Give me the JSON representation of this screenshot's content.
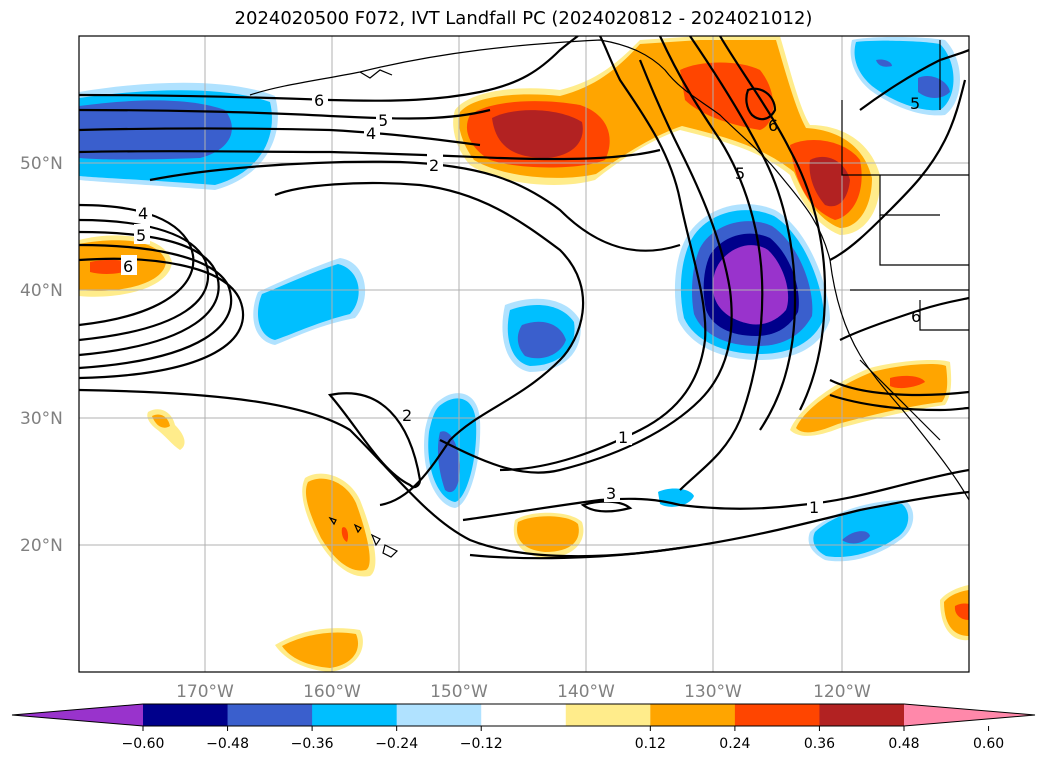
{
  "title": "2024020500 F072, IVT Landfall PC (2024020812 - 2024021012)",
  "latitude_labels": [
    "50°N",
    "40°N",
    "30°N",
    "20°N"
  ],
  "longitude_labels": [
    "170°W",
    "160°W",
    "150°W",
    "140°W",
    "130°W",
    "120°W"
  ],
  "colorbar": {
    "tick_labels": [
      "−0.60",
      "−0.48",
      "−0.36",
      "−0.24",
      "−0.12",
      "0.12",
      "0.24",
      "0.36",
      "0.48",
      "0.60"
    ],
    "colors": [
      "#9933cc",
      "#00008b",
      "#3a5fcd",
      "#00bfff",
      "#b0e2ff",
      "#ffffff",
      "#ffec8b",
      "#ffa500",
      "#ff4500",
      "#b22222",
      "#ff88aa"
    ]
  },
  "contour_labels": [
    "6",
    "5",
    "4",
    "2",
    "4",
    "5",
    "6",
    "2",
    "1",
    "3",
    "1",
    "6",
    "5",
    "5",
    "6"
  ]
}
